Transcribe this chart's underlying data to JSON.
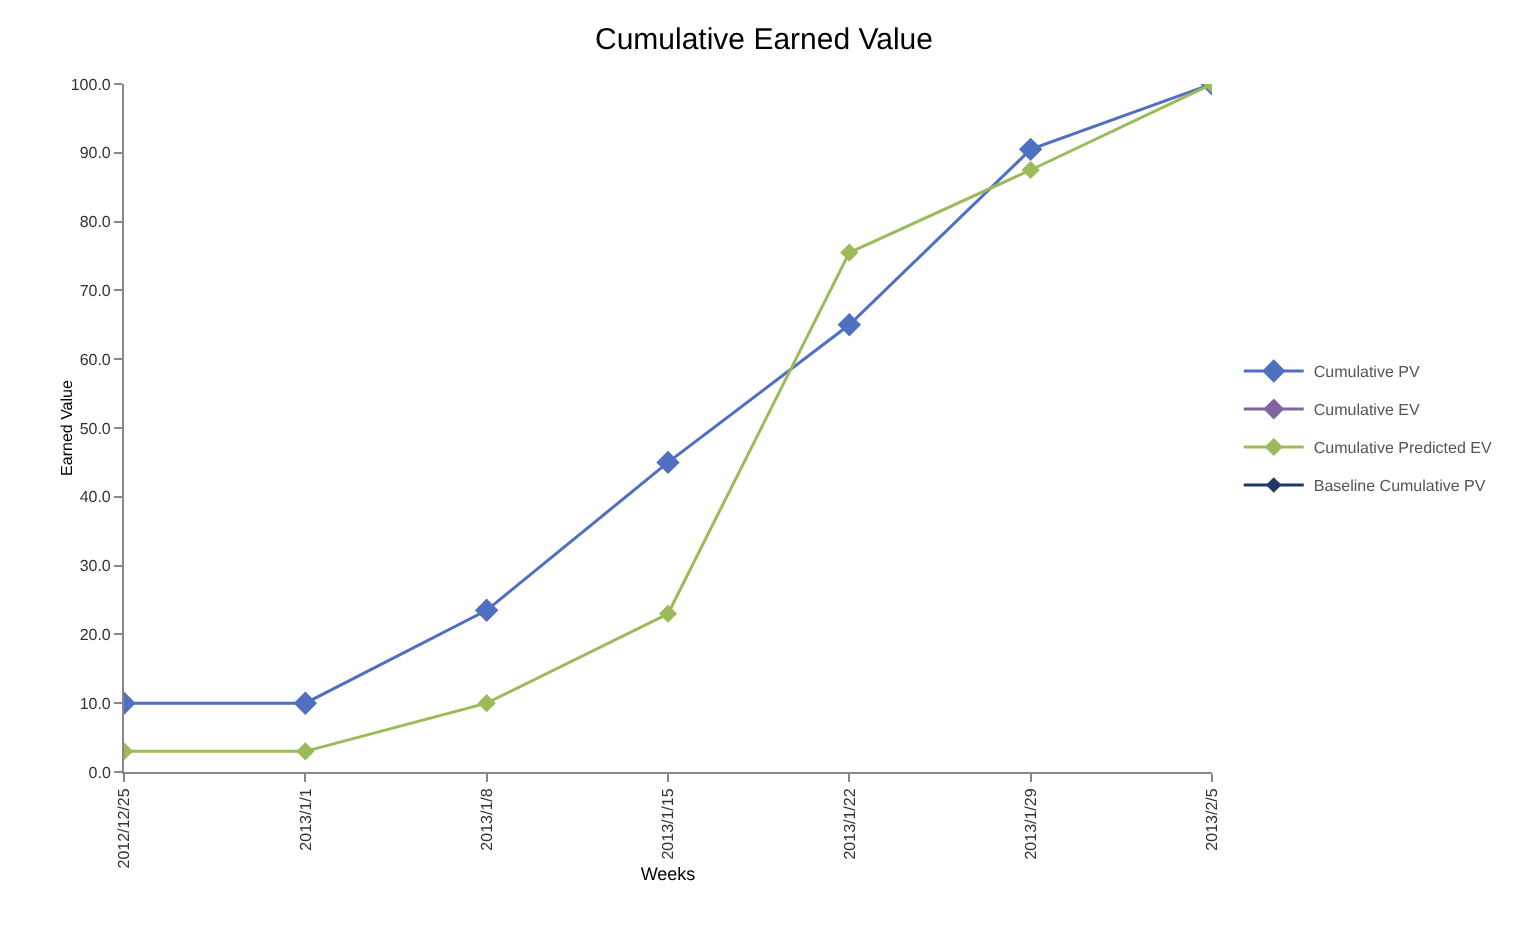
{
  "chart_data": {
    "type": "line",
    "title": "Cumulative Earned Value",
    "xlabel": "Weeks",
    "ylabel": "Earned Value",
    "categories": [
      "2012/12/25",
      "2013/1/1",
      "2013/1/8",
      "2013/1/15",
      "2013/1/22",
      "2013/1/29",
      "2013/2/5"
    ],
    "series": [
      {
        "name": "Cumulative PV",
        "color": "#4f6fc0",
        "values": [
          10,
          10,
          23.5,
          45,
          65,
          90.5,
          100
        ]
      },
      {
        "name": "Cumulative EV",
        "color": "#8064a2",
        "values": [
          null,
          null,
          null,
          null,
          null,
          null,
          null
        ]
      },
      {
        "name": "Cumulative Predicted EV",
        "color": "#9bbb59",
        "values": [
          3,
          3,
          10,
          23,
          75.5,
          87.5,
          100
        ]
      },
      {
        "name": "Baseline Cumulative PV",
        "color": "#1f3864",
        "values": [
          null,
          null,
          null,
          null,
          null,
          null,
          null
        ]
      }
    ],
    "ylim": [
      0,
      100
    ],
    "yticks": [
      {
        "value": 0,
        "label": "0.0"
      },
      {
        "value": 10,
        "label": "10.0"
      },
      {
        "value": 20,
        "label": "20.0"
      },
      {
        "value": 30,
        "label": "30.0"
      },
      {
        "value": 40,
        "label": "40.0"
      },
      {
        "value": 50,
        "label": "50.0"
      },
      {
        "value": 60,
        "label": "60.0"
      },
      {
        "value": 70,
        "label": "70.0"
      },
      {
        "value": 80,
        "label": "80.0"
      },
      {
        "value": 90,
        "label": "90.0"
      },
      {
        "value": 100,
        "label": "100.0"
      }
    ],
    "grid": false,
    "legend": "right",
    "marker": "diamond",
    "line_style": "solid"
  }
}
